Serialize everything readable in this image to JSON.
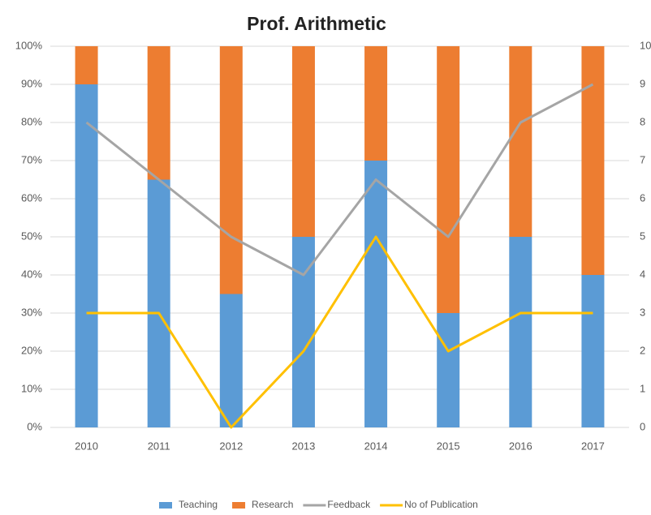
{
  "chart_data": {
    "type": "bar",
    "title": "Prof. Arithmetic",
    "categories": [
      "2010",
      "2011",
      "2012",
      "2013",
      "2014",
      "2015",
      "2016",
      "2017"
    ],
    "stacked": true,
    "series": [
      {
        "name": "Teaching",
        "type": "bar",
        "color": "#5b9bd5",
        "values": [
          90,
          65,
          35,
          50,
          70,
          30,
          50,
          40
        ]
      },
      {
        "name": "Research",
        "type": "bar",
        "color": "#ed7d31",
        "values": [
          10,
          35,
          65,
          50,
          30,
          70,
          50,
          60
        ]
      },
      {
        "name": "Feedback",
        "type": "line",
        "axis": "y2",
        "color": "#a5a5a5",
        "values": [
          8,
          6.5,
          5,
          4,
          6.5,
          5,
          8,
          9
        ]
      },
      {
        "name": "No of Publication",
        "type": "line",
        "axis": "y2",
        "color": "#ffc000",
        "values": [
          3,
          3,
          0,
          2,
          5,
          2,
          3,
          3
        ]
      }
    ],
    "ylim": [
      0,
      100
    ],
    "yticks": [
      {
        "value": 0,
        "label": "0%"
      },
      {
        "value": 10,
        "label": "10%"
      },
      {
        "value": 20,
        "label": "20%"
      },
      {
        "value": 30,
        "label": "30%"
      },
      {
        "value": 40,
        "label": "40%"
      },
      {
        "value": 50,
        "label": "50%"
      },
      {
        "value": 60,
        "label": "60%"
      },
      {
        "value": 70,
        "label": "70%"
      },
      {
        "value": 80,
        "label": "80%"
      },
      {
        "value": 90,
        "label": "90%"
      },
      {
        "value": 100,
        "label": "100%"
      }
    ],
    "y2lim": [
      0,
      10
    ],
    "y2ticks": [
      0,
      1,
      2,
      3,
      4,
      5,
      6,
      7,
      8,
      9,
      10
    ],
    "grid": true,
    "legend": "bottom"
  }
}
